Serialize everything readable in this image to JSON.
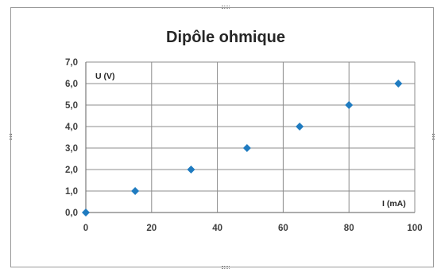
{
  "chart_data": {
    "type": "scatter",
    "title": "Dipôle ohmique",
    "xlabel": "I (mA)",
    "ylabel": "U (V)",
    "xlim": [
      0,
      100
    ],
    "ylim": [
      0,
      7
    ],
    "x_ticks": [
      "0",
      "20",
      "40",
      "60",
      "80",
      "100"
    ],
    "y_ticks": [
      "0,0",
      "1,0",
      "2,0",
      "3,0",
      "4,0",
      "5,0",
      "6,0",
      "7,0"
    ],
    "grid": true,
    "marker": "diamond",
    "marker_color": "#1f7bc0",
    "series": [
      {
        "x": [
          0,
          15,
          32,
          49,
          65,
          80,
          95
        ],
        "y": [
          0,
          1,
          2,
          3,
          4,
          5,
          6
        ]
      }
    ]
  }
}
